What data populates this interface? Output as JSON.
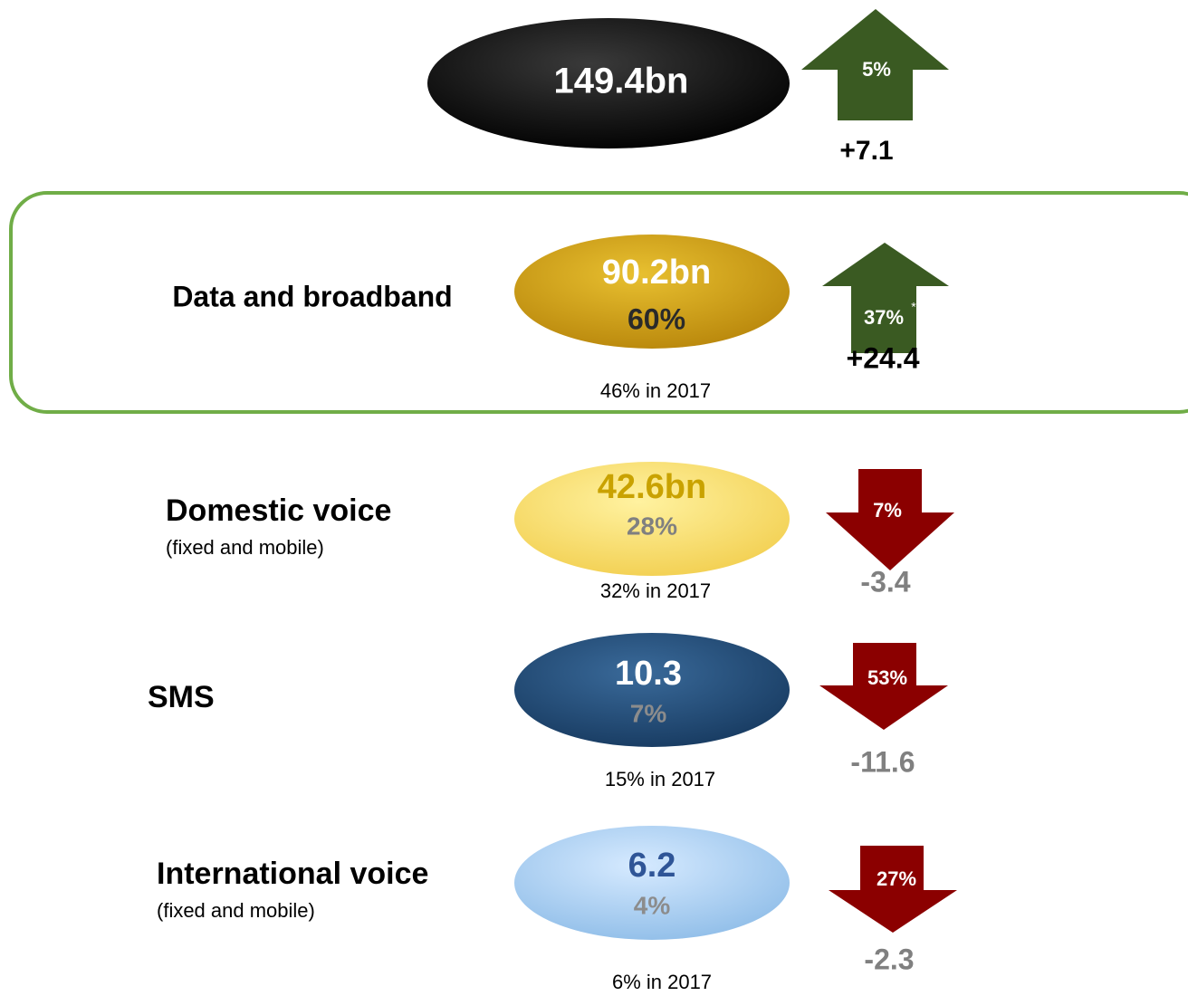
{
  "total": {
    "value": "149.4bn",
    "change_pct": "5%",
    "change": "+7.1"
  },
  "rows": [
    {
      "label": "Data and broadband",
      "value": "90.2bn",
      "share": "60%",
      "prior": "46% in 2017",
      "change_pct": "37%",
      "note": "*",
      "change": "+24.4"
    },
    {
      "label": "Domestic voice",
      "sublabel": "(fixed and mobile)",
      "value": "42.6bn",
      "share": "28%",
      "prior": "32% in 2017",
      "change_pct": "7%",
      "change": "-3.4"
    },
    {
      "label": "SMS",
      "value": "10.3",
      "share": "7%",
      "prior": "15% in 2017",
      "change_pct": "53%",
      "change": "-11.6"
    },
    {
      "label": "International voice",
      "sublabel": "(fixed and mobile)",
      "value": "6.2",
      "share": "4%",
      "prior": "6% in 2017",
      "change_pct": "27%",
      "change": "-2.3"
    }
  ]
}
